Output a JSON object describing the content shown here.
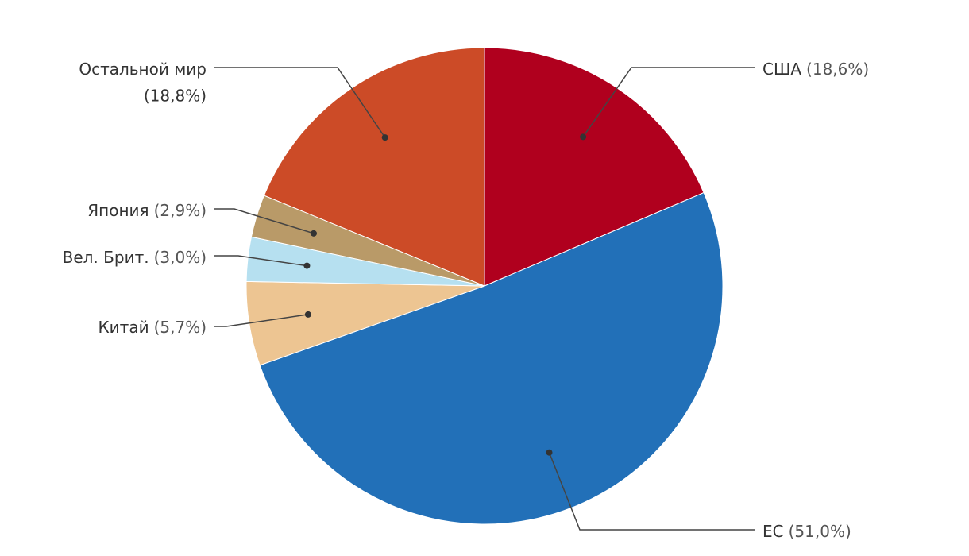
{
  "chart_data": {
    "type": "pie",
    "categories": [
      "США",
      "ЕС",
      "Китай",
      "Вел. Брит.",
      "Япония",
      "Остальной мир"
    ],
    "values": [
      18.6,
      51.0,
      5.7,
      3.0,
      2.9,
      18.8
    ],
    "value_labels": [
      "(18,6%)",
      "(51,0%)",
      "(5,7%)",
      "(3,0%)",
      "(2,9%)",
      "(18,8%)"
    ],
    "colors": [
      "#b0001e",
      "#2270b8",
      "#edc592",
      "#b6e0f0",
      "#b99a68",
      "#cc4b27"
    ]
  }
}
